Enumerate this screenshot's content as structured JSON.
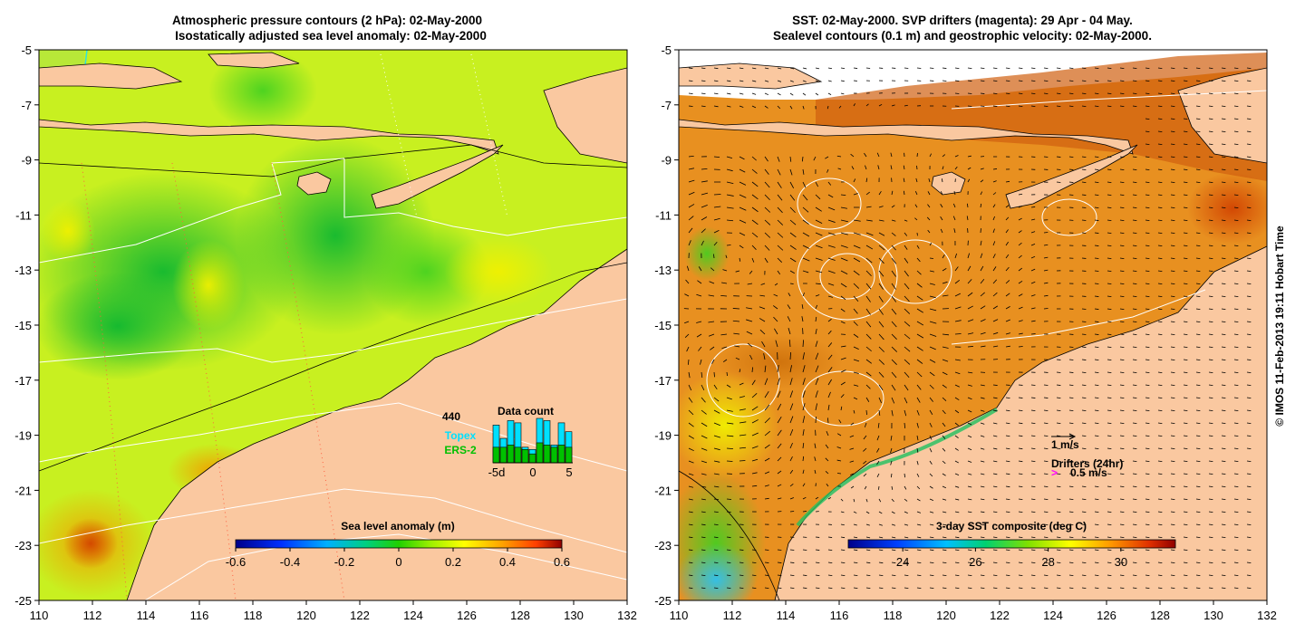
{
  "chart_data": [
    {
      "type": "heatmap",
      "title": "Atmospheric pressure contours (2 hPa): 02-May-2000",
      "subtitle": "Isostatically adjusted sea level anomaly: 02-May-2000",
      "x_ticks": [
        "110",
        "112",
        "114",
        "116",
        "118",
        "120",
        "122",
        "124",
        "126",
        "128",
        "130",
        "132"
      ],
      "y_ticks": [
        "-5",
        "-7",
        "-9",
        "-11",
        "-13",
        "-15",
        "-17",
        "-19",
        "-21",
        "-23",
        "-25"
      ],
      "xlim": [
        110,
        132
      ],
      "ylim": [
        -25,
        -5
      ],
      "colorbar": {
        "label": "Sea level anomaly (m)",
        "ticks": [
          "-0.6",
          "-0.4",
          "-0.2",
          "0",
          "0.2",
          "0.4",
          "0.6"
        ],
        "range": [
          -0.6,
          0.6
        ]
      },
      "data_count": {
        "title": "Data count",
        "max_label": "440",
        "series": [
          "Topex",
          "ERS-2"
        ],
        "x_ticks": [
          "-5d",
          "0",
          "5"
        ],
        "days": [
          -5,
          -4,
          -3,
          -2,
          -1,
          0,
          1,
          2,
          3,
          4,
          5
        ],
        "topex_fraction": [
          0.85,
          0.55,
          0.95,
          0.9,
          0.35,
          0.3,
          1.0,
          0.95,
          0.4,
          0.9,
          0.7
        ],
        "ers_fraction": [
          0.35,
          0.35,
          0.4,
          0.35,
          0.3,
          0.2,
          0.45,
          0.4,
          0.35,
          0.4,
          0.35
        ]
      },
      "colors": {
        "Topex": "#00e0ff",
        "ERS-2": "#00c000",
        "land": "#fac8a0"
      }
    },
    {
      "type": "heatmap",
      "title": "SST: 02-May-2000. SVP drifters (magenta): 29 Apr - 04 May.",
      "subtitle": "Sealevel contours (0.1 m) and geostrophic velocity: 02-May-2000.",
      "x_ticks": [
        "110",
        "112",
        "114",
        "116",
        "118",
        "120",
        "122",
        "124",
        "126",
        "128",
        "130",
        "132"
      ],
      "y_ticks": [
        "-5",
        "-7",
        "-9",
        "-11",
        "-13",
        "-15",
        "-17",
        "-19",
        "-21",
        "-23",
        "-25"
      ],
      "xlim": [
        110,
        132
      ],
      "ylim": [
        -25,
        -5
      ],
      "colorbar": {
        "label": "3-day SST composite (deg C)",
        "ticks": [
          "24",
          "26",
          "28",
          "30"
        ],
        "range": [
          22.5,
          31.5
        ]
      },
      "velocity_scale_label": "1 m/s",
      "drifters_label": "Drifters (24hr)",
      "drifter_scale_label": "0.5 m/s",
      "drifter_symbol": ">",
      "colors": {
        "drifters": "#ff00ff",
        "land": "#fac8a0"
      }
    }
  ],
  "credit": "© IMOS 11-Feb-2013 19:11 Hobart Time"
}
